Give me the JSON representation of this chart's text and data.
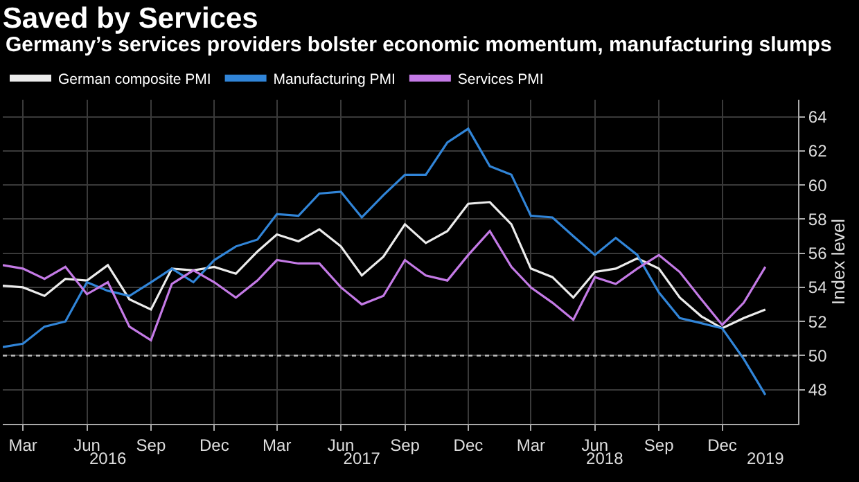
{
  "chart_data": {
    "type": "line",
    "title": "Saved by Services",
    "subtitle": "Germany’s services providers bolster economic momentum, manufacturing slumps",
    "ylabel": "Index level",
    "x": [
      "2016-02",
      "2016-03",
      "2016-04",
      "2016-05",
      "2016-06",
      "2016-07",
      "2016-08",
      "2016-09",
      "2016-10",
      "2016-11",
      "2016-12",
      "2017-01",
      "2017-02",
      "2017-03",
      "2017-04",
      "2017-05",
      "2017-06",
      "2017-07",
      "2017-08",
      "2017-09",
      "2017-10",
      "2017-11",
      "2017-12",
      "2018-01",
      "2018-02",
      "2018-03",
      "2018-04",
      "2018-05",
      "2018-06",
      "2018-07",
      "2018-08",
      "2018-09",
      "2018-10",
      "2018-11",
      "2018-12",
      "2019-01",
      "2019-02"
    ],
    "series": [
      {
        "name": "German composite PMI",
        "color": "#ececec",
        "values": [
          54.1,
          54.0,
          53.5,
          54.5,
          54.4,
          55.3,
          53.3,
          52.7,
          55.1,
          55.0,
          55.2,
          54.8,
          56.1,
          57.1,
          56.7,
          57.4,
          56.4,
          54.7,
          55.8,
          57.7,
          56.6,
          57.3,
          58.9,
          59.0,
          57.7,
          55.1,
          54.6,
          53.4,
          54.9,
          55.1,
          55.7,
          55.1,
          53.4,
          52.3,
          51.6,
          52.2,
          52.7
        ]
      },
      {
        "name": "Manufacturing PMI",
        "color": "#3185d8",
        "values": [
          50.5,
          50.7,
          51.7,
          52.0,
          54.3,
          53.8,
          53.5,
          54.3,
          55.1,
          54.3,
          55.6,
          56.4,
          56.8,
          58.3,
          58.2,
          59.5,
          59.6,
          58.1,
          59.4,
          60.6,
          60.6,
          62.5,
          63.3,
          61.1,
          60.6,
          58.2,
          58.1,
          57.0,
          55.9,
          56.9,
          55.9,
          53.7,
          52.2,
          51.9,
          51.6,
          49.8,
          47.7
        ]
      },
      {
        "name": "Services PMI",
        "color": "#c47ae6",
        "values": [
          55.3,
          55.1,
          54.5,
          55.2,
          53.6,
          54.3,
          51.7,
          50.9,
          54.2,
          55.0,
          54.3,
          53.4,
          54.4,
          55.6,
          55.4,
          55.4,
          54.0,
          53.0,
          53.5,
          55.6,
          54.7,
          54.4,
          55.9,
          57.3,
          55.2,
          54.0,
          53.1,
          52.1,
          54.6,
          54.2,
          55.1,
          55.9,
          54.9,
          53.3,
          51.8,
          53.1,
          55.2
        ]
      }
    ],
    "xlim": [
      "2016-02-01",
      "2019-03-20"
    ],
    "xticks": [
      {
        "value": "2016-03",
        "label": "Mar"
      },
      {
        "value": "2016-06",
        "label": "Jun"
      },
      {
        "value": "2016-09",
        "label": "Sep"
      },
      {
        "value": "2016-12",
        "label": "Dec"
      },
      {
        "value": "2017-03",
        "label": "Mar"
      },
      {
        "value": "2017-06",
        "label": "Jun"
      },
      {
        "value": "2017-09",
        "label": "Sep"
      },
      {
        "value": "2017-12",
        "label": "Dec"
      },
      {
        "value": "2018-03",
        "label": "Mar"
      },
      {
        "value": "2018-06",
        "label": "Jun"
      },
      {
        "value": "2018-09",
        "label": "Sep"
      },
      {
        "value": "2018-12",
        "label": "Dec"
      }
    ],
    "x2lim": [
      "2016-02-01",
      "2019-03-20"
    ],
    "x2ticks": [
      {
        "value": "2016-07-01",
        "label": "2016"
      },
      {
        "value": "2017-07-01",
        "label": "2017"
      },
      {
        "value": "2018-06-15",
        "label": "2018"
      },
      {
        "value": "2019-02-01",
        "label": "2019"
      }
    ],
    "ylim": [
      46,
      65
    ],
    "yticks": [
      48,
      50,
      52,
      54,
      56,
      58,
      60,
      62,
      64
    ],
    "ref_lines": [
      {
        "axis": "y",
        "value": 50,
        "color": "#bdbdbd",
        "line_style": "dotted"
      }
    ],
    "grid": true,
    "legend": "top left",
    "marker": "none",
    "line_style": "solid"
  }
}
